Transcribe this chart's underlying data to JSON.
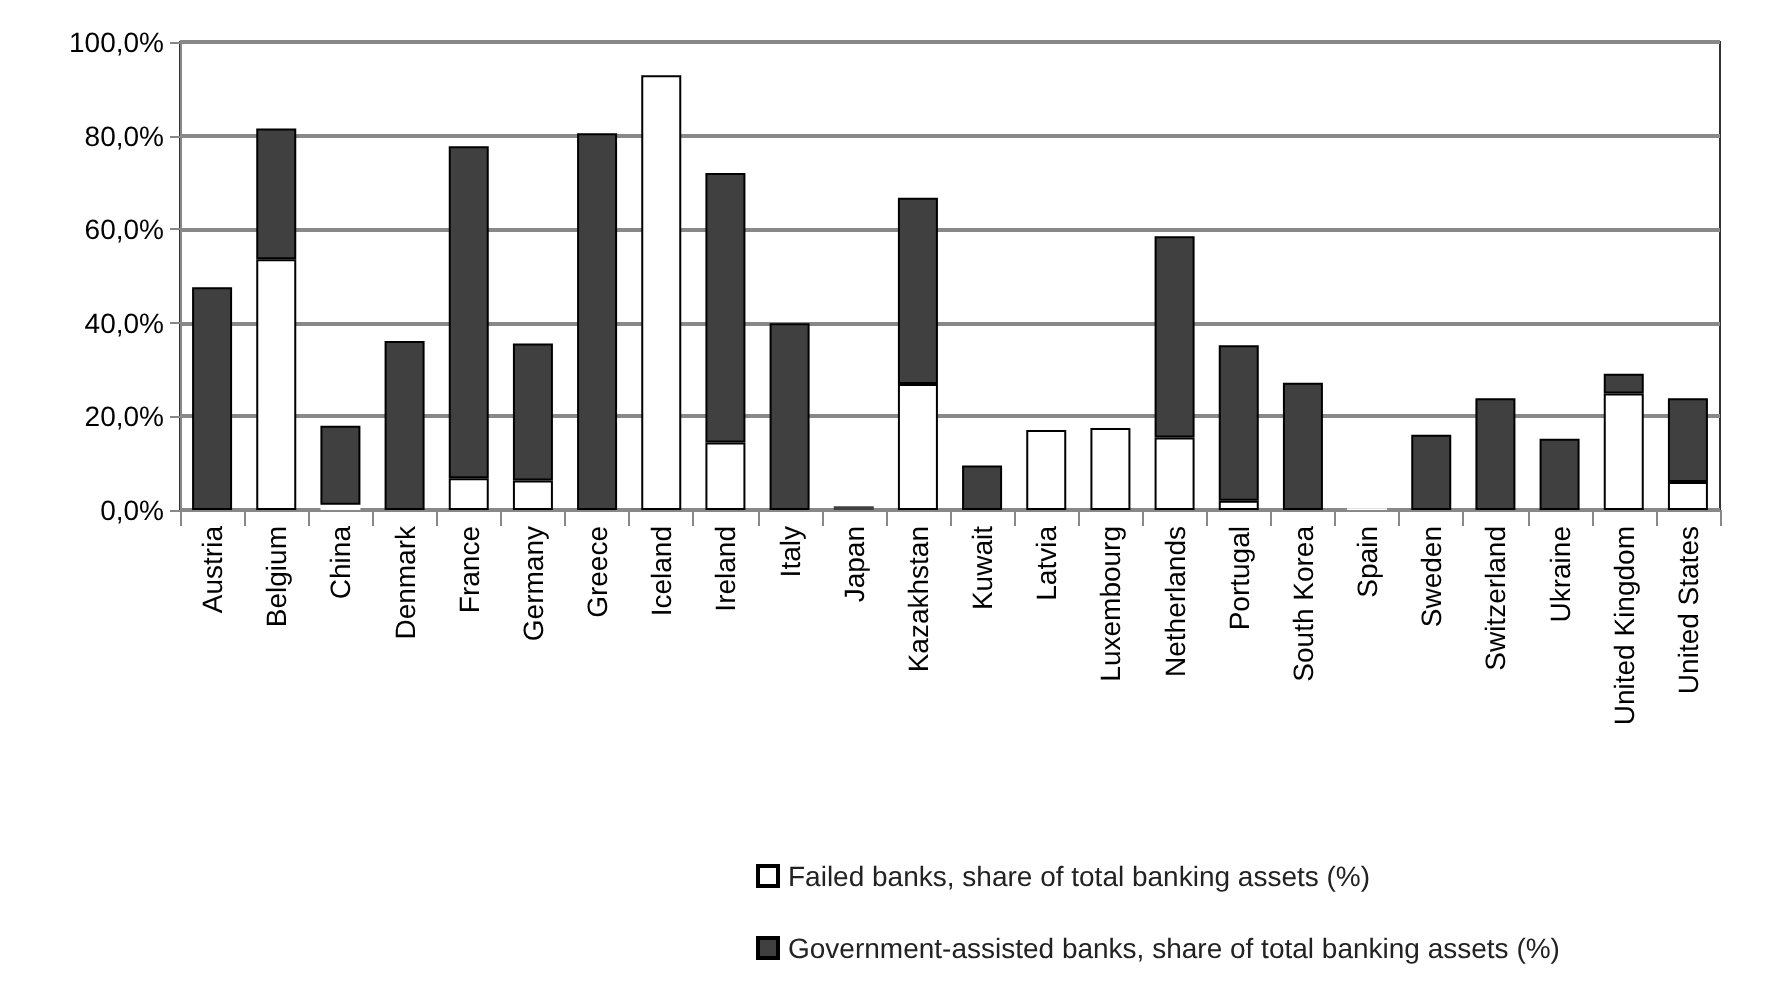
{
  "chart_data": {
    "type": "bar",
    "stacked": true,
    "categories": [
      "Austria",
      "Belgium",
      "China",
      "Denmark",
      "France",
      "Germany",
      "Greece",
      "Iceland",
      "Ireland",
      "Italy",
      "Japan",
      "Kazakhstan",
      "Kuwait",
      "Latvia",
      "Luxembourg",
      "Netherlands",
      "Portugal",
      "South Korea",
      "Spain",
      "Sweden",
      "Switzerland",
      "Ukraine",
      "United Kingdom",
      "United States"
    ],
    "series": [
      {
        "name": "Failed banks, share of total banking assets (%)",
        "color": "#ffffff",
        "values": [
          0,
          53.6,
          1.1,
          0,
          6.8,
          6.3,
          0,
          92.9,
          14.4,
          0,
          0,
          26.9,
          0,
          17.1,
          17.5,
          15.5,
          2.0,
          0,
          0.4,
          0,
          0,
          0,
          24.9,
          6.0
        ]
      },
      {
        "name": "Government-assisted banks, share of total banking assets (%)",
        "color": "#404040",
        "values": [
          47.6,
          27.9,
          16.9,
          36.1,
          70.9,
          29.3,
          80.5,
          0,
          57.6,
          39.9,
          0.8,
          39.8,
          9.5,
          0,
          0,
          43.0,
          33.2,
          27.2,
          0,
          16.1,
          23.9,
          15.2,
          4.2,
          17.9
        ]
      }
    ],
    "ylim": [
      0,
      100
    ],
    "yticks": [
      {
        "value": 0,
        "label": "0,0%"
      },
      {
        "value": 20,
        "label": "20,0%"
      },
      {
        "value": 40,
        "label": "40,0%"
      },
      {
        "value": 60,
        "label": "60,0%"
      },
      {
        "value": 80,
        "label": "80,0%"
      },
      {
        "value": 100,
        "label": "100,0%"
      }
    ],
    "grid": "y",
    "legend": "bottom"
  }
}
